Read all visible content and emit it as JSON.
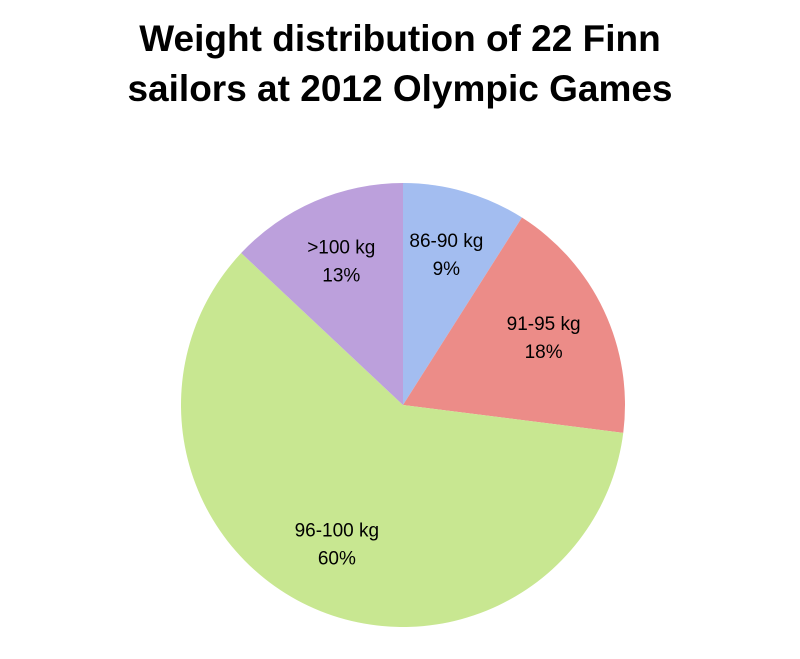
{
  "chart_data": {
    "type": "pie",
    "title": "Weight distribution of 22 Finn sailors at 2012 Olympic Games",
    "categories": [
      "86-90 kg",
      "91-95 kg",
      "96-100 kg",
      ">100 kg"
    ],
    "values": [
      9,
      18,
      60,
      13
    ],
    "value_labels": [
      "9%",
      "18%",
      "60%",
      "13%"
    ],
    "colors": [
      "#a3bdf0",
      "#ec8c88",
      "#c8e791",
      "#bca0dc"
    ]
  }
}
